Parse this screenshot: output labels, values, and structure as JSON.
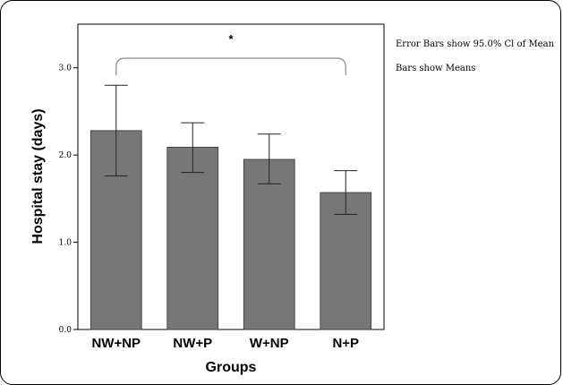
{
  "chart_data": {
    "type": "bar",
    "categories": [
      "NW+NP",
      "NW+P",
      "W+NP",
      "N+P"
    ],
    "values": [
      2.28,
      2.09,
      1.95,
      1.57
    ],
    "error_bars": [
      {
        "low": 1.76,
        "high": 2.8
      },
      {
        "low": 1.8,
        "high": 2.37
      },
      {
        "low": 1.67,
        "high": 2.24
      },
      {
        "low": 1.32,
        "high": 1.82
      }
    ],
    "xlabel": "Groups",
    "ylabel": "Hospital stay (days)",
    "ylim": [
      0,
      3.5
    ],
    "yticks": [
      {
        "value": 0.0,
        "label": "0.0"
      },
      {
        "value": 1.0,
        "label": "1.0"
      },
      {
        "value": 2.0,
        "label": "2.0"
      },
      {
        "value": 3.0,
        "label": "3.0"
      }
    ],
    "annotations": {
      "significance": "*",
      "significance_between": [
        "NW+NP",
        "N+P"
      ],
      "note_error_bars": "Error Bars show 95.0% Cl of Mean",
      "note_bars": "Bars show Means"
    },
    "bar_color": "#777777",
    "grid": false,
    "legend": "none"
  }
}
